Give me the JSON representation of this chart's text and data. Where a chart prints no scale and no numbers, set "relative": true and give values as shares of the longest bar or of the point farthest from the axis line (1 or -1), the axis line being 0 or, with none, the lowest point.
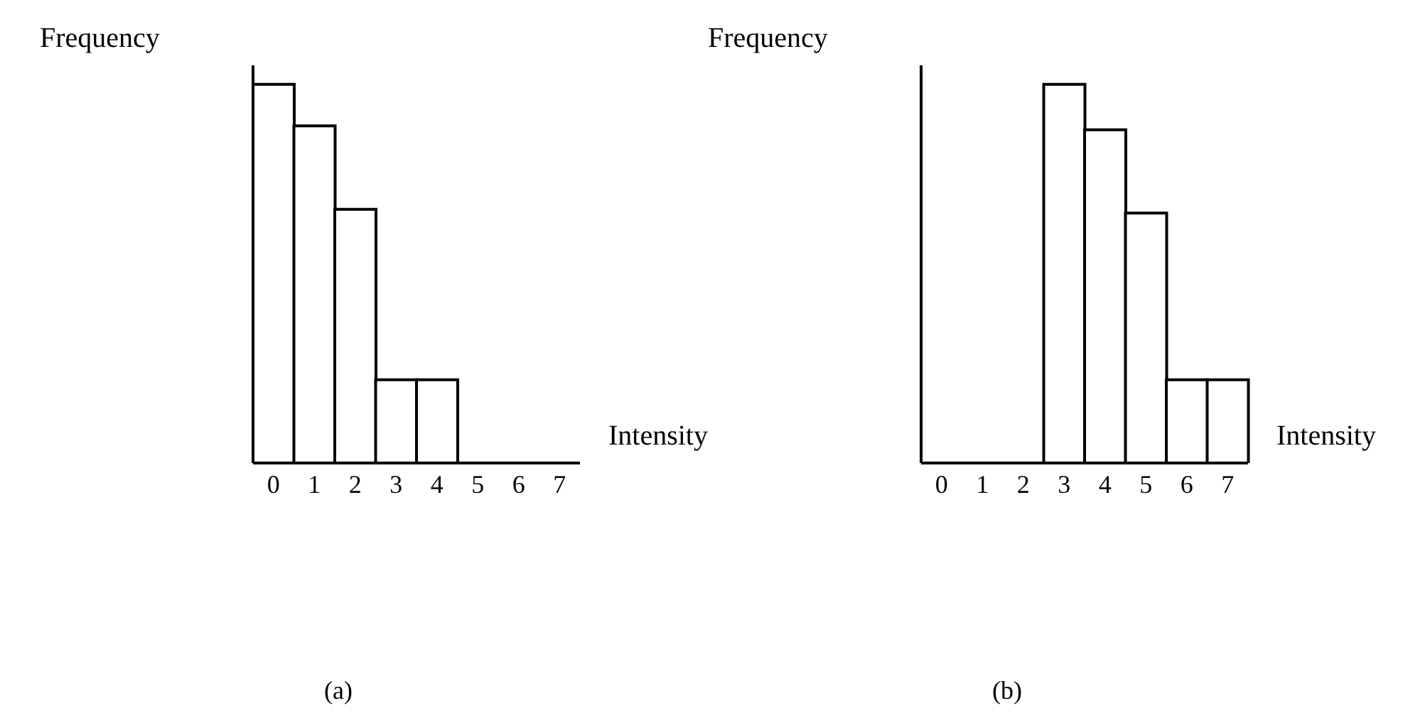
{
  "chart_data": [
    {
      "type": "bar",
      "xlabel": "Intensity",
      "ylabel": "Frequency",
      "categories": [
        "0",
        "1",
        "2",
        "3",
        "4",
        "5",
        "6",
        "7"
      ],
      "relative": true,
      "color": "#000000",
      "values": [
        1,
        0.89,
        0.67,
        0.22,
        0.22,
        0,
        0,
        0
      ],
      "annotations": [
        "(a)"
      ]
    },
    {
      "type": "bar",
      "xlabel": "Intensity",
      "ylabel": "Frequency",
      "categories": [
        "0",
        "1",
        "2",
        "3",
        "4",
        "5",
        "6",
        "7"
      ],
      "relative": true,
      "color": "#000000",
      "values": [
        0,
        0,
        0,
        1,
        0.88,
        0.66,
        0.22,
        0.22
      ],
      "annotations": [
        "(b)"
      ]
    }
  ]
}
